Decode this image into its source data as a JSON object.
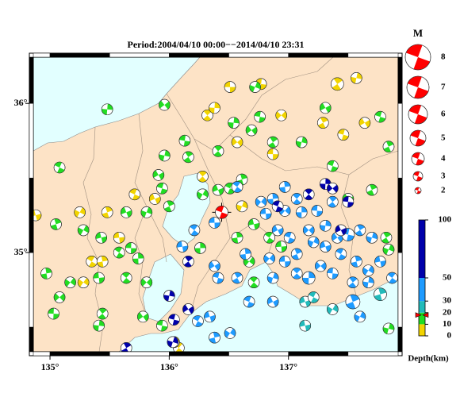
{
  "title": "Period:2004/04/10 00:00−−2014/04/10 23:31",
  "map": {
    "xlim": [
      134.86,
      137.92
    ],
    "ylim": [
      34.335,
      36.31
    ],
    "xticks": [
      {
        "value": 135,
        "label": "135°"
      },
      {
        "value": 136,
        "label": "136°"
      },
      {
        "value": 137,
        "label": "137°"
      }
    ],
    "yticks": [
      {
        "value": 35,
        "label": "35°"
      },
      {
        "value": 36,
        "label": "36°"
      }
    ],
    "land_color": "#fde3c6",
    "sea_color": "#e2ffff"
  },
  "main_event": {
    "lon": 136.44,
    "lat": 35.27,
    "depth": 18,
    "mag": 4,
    "color": "#ff0000"
  },
  "magnitude_legend": {
    "title": "M",
    "values": [
      8,
      7,
      6,
      5,
      4,
      3,
      2
    ],
    "color": "#ff0000"
  },
  "depth_scale": {
    "label": "Depth(km)",
    "lim": [
      0,
      100
    ],
    "ticks": [
      0,
      10,
      20,
      30,
      50,
      100
    ],
    "bands": [
      {
        "to": 10,
        "color": "#f2d400"
      },
      {
        "to": 20,
        "color": "#22dd22"
      },
      {
        "to": 30,
        "color": "#22bbbb"
      },
      {
        "to": 50,
        "color": "#1e9bff"
      },
      {
        "to": 100,
        "color": "#0000aa"
      }
    ]
  },
  "events": [
    {
      "lon": 136.51,
      "lat": 36.11,
      "depth": 5,
      "mag": 3.5
    },
    {
      "lon": 136.32,
      "lat": 35.92,
      "depth": 5,
      "mag": 3.5
    },
    {
      "lon": 136.38,
      "lat": 35.97,
      "depth": 5,
      "mag": 3.5
    },
    {
      "lon": 136.57,
      "lat": 35.74,
      "depth": 5,
      "mag": 3.5
    },
    {
      "lon": 136.77,
      "lat": 36.13,
      "depth": 5,
      "mag": 3.5
    },
    {
      "lon": 137.41,
      "lat": 36.13,
      "depth": 5,
      "mag": 4
    },
    {
      "lon": 137.57,
      "lat": 36.17,
      "depth": 5,
      "mag": 3.5
    },
    {
      "lon": 137.64,
      "lat": 35.87,
      "depth": 5,
      "mag": 3.5
    },
    {
      "lon": 137.46,
      "lat": 35.79,
      "depth": 5,
      "mag": 3.5
    },
    {
      "lon": 137.29,
      "lat": 35.87,
      "depth": 5,
      "mag": 3.5
    },
    {
      "lon": 136.61,
      "lat": 35.31,
      "depth": 5,
      "mag": 3.5
    },
    {
      "lon": 135.88,
      "lat": 35.36,
      "depth": 5,
      "mag": 3.5
    },
    {
      "lon": 135.71,
      "lat": 35.39,
      "depth": 5,
      "mag": 3.5
    },
    {
      "lon": 135.48,
      "lat": 35.27,
      "depth": 5,
      "mag": 3.5
    },
    {
      "lon": 135.25,
      "lat": 35.27,
      "depth": 5,
      "mag": 3.5
    },
    {
      "lon": 134.88,
      "lat": 35.25,
      "depth": 5,
      "mag": 3.5
    },
    {
      "lon": 135.35,
      "lat": 34.94,
      "depth": 5,
      "mag": 3.5
    },
    {
      "lon": 135.44,
      "lat": 34.94,
      "depth": 5,
      "mag": 3.5
    },
    {
      "lon": 135.28,
      "lat": 34.8,
      "depth": 5,
      "mag": 3.5
    },
    {
      "lon": 135.58,
      "lat": 35.1,
      "depth": 5,
      "mag": 3.5
    },
    {
      "lon": 136.08,
      "lat": 34.36,
      "depth": 5,
      "mag": 3.5
    },
    {
      "lon": 136.04,
      "lat": 34.4,
      "depth": 5,
      "mag": 3.5
    },
    {
      "lon": 136.94,
      "lat": 35.92,
      "depth": 5,
      "mag": 3.5
    },
    {
      "lon": 136.87,
      "lat": 35.66,
      "depth": 5,
      "mag": 3.5
    },
    {
      "lon": 136.28,
      "lat": 35.51,
      "depth": 5,
      "mag": 3.5
    },
    {
      "lon": 135.48,
      "lat": 35.96,
      "depth": 15,
      "mag": 3.5
    },
    {
      "lon": 135.96,
      "lat": 35.99,
      "depth": 15,
      "mag": 3.5
    },
    {
      "lon": 136.13,
      "lat": 35.75,
      "depth": 15,
      "mag": 3.5
    },
    {
      "lon": 136.16,
      "lat": 35.64,
      "depth": 15,
      "mag": 3.5
    },
    {
      "lon": 135.96,
      "lat": 35.65,
      "depth": 15,
      "mag": 3.5
    },
    {
      "lon": 135.91,
      "lat": 35.52,
      "depth": 15,
      "mag": 3.5
    },
    {
      "lon": 135.94,
      "lat": 35.43,
      "depth": 15,
      "mag": 3.5
    },
    {
      "lon": 136.0,
      "lat": 35.31,
      "depth": 15,
      "mag": 3.5
    },
    {
      "lon": 135.81,
      "lat": 35.27,
      "depth": 15,
      "mag": 3.5
    },
    {
      "lon": 135.64,
      "lat": 35.27,
      "depth": 15,
      "mag": 3.5
    },
    {
      "lon": 135.08,
      "lat": 35.57,
      "depth": 15,
      "mag": 3.5
    },
    {
      "lon": 135.05,
      "lat": 35.19,
      "depth": 15,
      "mag": 3.5
    },
    {
      "lon": 135.28,
      "lat": 35.15,
      "depth": 15,
      "mag": 3.5
    },
    {
      "lon": 135.43,
      "lat": 35.1,
      "depth": 15,
      "mag": 3.5
    },
    {
      "lon": 135.58,
      "lat": 35.0,
      "depth": 15,
      "mag": 3.5
    },
    {
      "lon": 134.97,
      "lat": 34.86,
      "depth": 15,
      "mag": 3.5
    },
    {
      "lon": 135.17,
      "lat": 34.8,
      "depth": 15,
      "mag": 3.5
    },
    {
      "lon": 135.41,
      "lat": 34.83,
      "depth": 15,
      "mag": 3.5
    },
    {
      "lon": 135.64,
      "lat": 34.83,
      "depth": 15,
      "mag": 3.5
    },
    {
      "lon": 135.74,
      "lat": 34.96,
      "depth": 15,
      "mag": 3.5
    },
    {
      "lon": 135.81,
      "lat": 34.8,
      "depth": 15,
      "mag": 3.5
    },
    {
      "lon": 135.68,
      "lat": 35.03,
      "depth": 15,
      "mag": 3.5
    },
    {
      "lon": 136.41,
      "lat": 35.68,
      "depth": 15,
      "mag": 3.5
    },
    {
      "lon": 136.54,
      "lat": 35.87,
      "depth": 15,
      "mag": 3.5
    },
    {
      "lon": 136.69,
      "lat": 35.82,
      "depth": 15,
      "mag": 3.5
    },
    {
      "lon": 136.76,
      "lat": 35.91,
      "depth": 15,
      "mag": 3.5
    },
    {
      "lon": 136.87,
      "lat": 35.74,
      "depth": 15,
      "mag": 3.5
    },
    {
      "lon": 137.11,
      "lat": 35.74,
      "depth": 15,
      "mag": 3.5
    },
    {
      "lon": 137.31,
      "lat": 35.97,
      "depth": 15,
      "mag": 3.5
    },
    {
      "lon": 137.77,
      "lat": 35.91,
      "depth": 15,
      "mag": 3.5
    },
    {
      "lon": 137.84,
      "lat": 35.71,
      "depth": 15,
      "mag": 3.5
    },
    {
      "lon": 136.72,
      "lat": 36.11,
      "depth": 15,
      "mag": 3.5
    },
    {
      "lon": 136.41,
      "lat": 35.42,
      "depth": 15,
      "mag": 3.5
    },
    {
      "lon": 136.51,
      "lat": 35.43,
      "depth": 15,
      "mag": 3.5
    },
    {
      "lon": 136.61,
      "lat": 35.49,
      "depth": 15,
      "mag": 3.5
    },
    {
      "lon": 136.28,
      "lat": 35.39,
      "depth": 15,
      "mag": 3.5
    },
    {
      "lon": 136.71,
      "lat": 35.19,
      "depth": 15,
      "mag": 3.5
    },
    {
      "lon": 136.84,
      "lat": 35.1,
      "depth": 15,
      "mag": 3.5
    },
    {
      "lon": 136.57,
      "lat": 35.1,
      "depth": 15,
      "mag": 3.5
    },
    {
      "lon": 136.67,
      "lat": 34.94,
      "depth": 15,
      "mag": 3.5
    },
    {
      "lon": 136.94,
      "lat": 35.04,
      "depth": 15,
      "mag": 3.5
    },
    {
      "lon": 136.71,
      "lat": 34.8,
      "depth": 15,
      "mag": 3.5
    },
    {
      "lon": 136.26,
      "lat": 35.03,
      "depth": 15,
      "mag": 3.5
    },
    {
      "lon": 135.08,
      "lat": 34.7,
      "depth": 15,
      "mag": 3.5
    },
    {
      "lon": 135.03,
      "lat": 34.59,
      "depth": 15,
      "mag": 3.5
    },
    {
      "lon": 135.44,
      "lat": 34.59,
      "depth": 15,
      "mag": 3.5
    },
    {
      "lon": 135.41,
      "lat": 34.51,
      "depth": 15,
      "mag": 3.5
    },
    {
      "lon": 135.78,
      "lat": 34.57,
      "depth": 15,
      "mag": 3.5
    },
    {
      "lon": 135.94,
      "lat": 34.51,
      "depth": 15,
      "mag": 3.5
    },
    {
      "lon": 137.82,
      "lat": 35.1,
      "depth": 15,
      "mag": 3.5
    },
    {
      "lon": 137.84,
      "lat": 34.49,
      "depth": 15,
      "mag": 3.5
    },
    {
      "lon": 137.5,
      "lat": 35.36,
      "depth": 15,
      "mag": 3.5
    },
    {
      "lon": 137.37,
      "lat": 35.58,
      "depth": 15,
      "mag": 3.5
    },
    {
      "lon": 137.7,
      "lat": 35.42,
      "depth": 15,
      "mag": 3.5
    },
    {
      "lon": 137.84,
      "lat": 35.02,
      "depth": 15,
      "mag": 3.5
    },
    {
      "lon": 137.14,
      "lat": 34.67,
      "depth": 25,
      "mag": 3.5
    },
    {
      "lon": 137.21,
      "lat": 34.7,
      "depth": 25,
      "mag": 3.5
    },
    {
      "lon": 137.77,
      "lat": 34.72,
      "depth": 25,
      "mag": 4
    },
    {
      "lon": 137.37,
      "lat": 34.62,
      "depth": 25,
      "mag": 3.5
    },
    {
      "lon": 137.14,
      "lat": 34.51,
      "depth": 25,
      "mag": 3.5
    },
    {
      "lon": 136.57,
      "lat": 35.44,
      "depth": 40,
      "mag": 3.5
    },
    {
      "lon": 136.97,
      "lat": 35.44,
      "depth": 40,
      "mag": 3.5
    },
    {
      "lon": 136.77,
      "lat": 35.34,
      "depth": 40,
      "mag": 3.5
    },
    {
      "lon": 136.81,
      "lat": 35.26,
      "depth": 40,
      "mag": 3.5
    },
    {
      "lon": 137.07,
      "lat": 35.36,
      "depth": 40,
      "mag": 3.5
    },
    {
      "lon": 137.11,
      "lat": 35.27,
      "depth": 40,
      "mag": 3.5
    },
    {
      "lon": 137.17,
      "lat": 35.15,
      "depth": 40,
      "mag": 3.5
    },
    {
      "lon": 137.24,
      "lat": 35.28,
      "depth": 40,
      "mag": 3.5
    },
    {
      "lon": 137.37,
      "lat": 35.34,
      "depth": 40,
      "mag": 3.5
    },
    {
      "lon": 137.31,
      "lat": 35.18,
      "depth": 40,
      "mag": 3.5
    },
    {
      "lon": 137.41,
      "lat": 35.1,
      "depth": 40,
      "mag": 3.5
    },
    {
      "lon": 137.5,
      "lat": 35.12,
      "depth": 40,
      "mag": 4
    },
    {
      "lon": 137.6,
      "lat": 35.15,
      "depth": 40,
      "mag": 3.5
    },
    {
      "lon": 137.7,
      "lat": 35.1,
      "depth": 40,
      "mag": 3.5
    },
    {
      "lon": 136.91,
      "lat": 35.15,
      "depth": 40,
      "mag": 3.5
    },
    {
      "lon": 137.01,
      "lat": 35.1,
      "depth": 40,
      "mag": 3.5
    },
    {
      "lon": 137.07,
      "lat": 34.99,
      "depth": 40,
      "mag": 3.5
    },
    {
      "lon": 137.21,
      "lat": 35.07,
      "depth": 40,
      "mag": 3.5
    },
    {
      "lon": 137.31,
      "lat": 35.04,
      "depth": 40,
      "mag": 3.5
    },
    {
      "lon": 137.44,
      "lat": 34.99,
      "depth": 40,
      "mag": 3.5
    },
    {
      "lon": 137.57,
      "lat": 34.94,
      "depth": 40,
      "mag": 3.5
    },
    {
      "lon": 137.67,
      "lat": 34.88,
      "depth": 40,
      "mag": 3.5
    },
    {
      "lon": 137.77,
      "lat": 34.94,
      "depth": 40,
      "mag": 3.5
    },
    {
      "lon": 137.87,
      "lat": 34.83,
      "depth": 40,
      "mag": 3.5
    },
    {
      "lon": 136.64,
      "lat": 34.99,
      "depth": 40,
      "mag": 3.5
    },
    {
      "lon": 136.84,
      "lat": 34.96,
      "depth": 40,
      "mag": 3.5
    },
    {
      "lon": 136.97,
      "lat": 34.94,
      "depth": 40,
      "mag": 3.5
    },
    {
      "lon": 137.07,
      "lat": 34.86,
      "depth": 40,
      "mag": 3.5
    },
    {
      "lon": 137.17,
      "lat": 34.83,
      "depth": 40,
      "mag": 4
    },
    {
      "lon": 137.27,
      "lat": 34.91,
      "depth": 40,
      "mag": 3.5
    },
    {
      "lon": 137.37,
      "lat": 34.86,
      "depth": 40,
      "mag": 3.5
    },
    {
      "lon": 137.54,
      "lat": 34.8,
      "depth": 40,
      "mag": 3.5
    },
    {
      "lon": 137.67,
      "lat": 34.8,
      "depth": 40,
      "mag": 3.5
    },
    {
      "lon": 136.38,
      "lat": 34.91,
      "depth": 40,
      "mag": 3.5
    },
    {
      "lon": 136.41,
      "lat": 34.83,
      "depth": 40,
      "mag": 3.5
    },
    {
      "lon": 136.57,
      "lat": 34.83,
      "depth": 40,
      "mag": 3.5
    },
    {
      "lon": 136.87,
      "lat": 34.83,
      "depth": 40,
      "mag": 3.5
    },
    {
      "lon": 136.87,
      "lat": 34.67,
      "depth": 40,
      "mag": 3.5
    },
    {
      "lon": 136.67,
      "lat": 34.67,
      "depth": 40,
      "mag": 3.5
    },
    {
      "lon": 137.54,
      "lat": 34.67,
      "depth": 40,
      "mag": 4.5
    },
    {
      "lon": 137.6,
      "lat": 34.57,
      "depth": 40,
      "mag": 3.5
    },
    {
      "lon": 136.34,
      "lat": 34.57,
      "depth": 40,
      "mag": 3.5
    },
    {
      "lon": 136.24,
      "lat": 34.54,
      "depth": 40,
      "mag": 3.5
    },
    {
      "lon": 136.38,
      "lat": 34.43,
      "depth": 40,
      "mag": 3.5
    },
    {
      "lon": 136.51,
      "lat": 34.46,
      "depth": 40,
      "mag": 3.5
    },
    {
      "lon": 136.11,
      "lat": 35.04,
      "depth": 40,
      "mag": 3.5
    },
    {
      "lon": 136.21,
      "lat": 35.15,
      "depth": 40,
      "mag": 3.5
    },
    {
      "lon": 136.87,
      "lat": 35.36,
      "depth": 40,
      "mag": 3.5
    },
    {
      "lon": 136.97,
      "lat": 35.28,
      "depth": 40,
      "mag": 3.5
    },
    {
      "lon": 136.38,
      "lat": 35.2,
      "depth": 40,
      "mag": 3.5
    },
    {
      "lon": 137.17,
      "lat": 35.39,
      "depth": 70,
      "mag": 3.5
    },
    {
      "lon": 137.31,
      "lat": 35.46,
      "depth": 70,
      "mag": 3.5
    },
    {
      "lon": 137.37,
      "lat": 35.43,
      "depth": 70,
      "mag": 3.5
    },
    {
      "lon": 137.5,
      "lat": 35.34,
      "depth": 70,
      "mag": 3.5
    },
    {
      "lon": 136.16,
      "lat": 34.94,
      "depth": 70,
      "mag": 3.5
    },
    {
      "lon": 136.0,
      "lat": 34.71,
      "depth": 70,
      "mag": 3.5
    },
    {
      "lon": 136.16,
      "lat": 34.62,
      "depth": 70,
      "mag": 3.5
    },
    {
      "lon": 136.04,
      "lat": 34.55,
      "depth": 70,
      "mag": 3.5
    },
    {
      "lon": 135.64,
      "lat": 34.36,
      "depth": 70,
      "mag": 3.5
    },
    {
      "lon": 136.03,
      "lat": 34.4,
      "depth": 70,
      "mag": 3.5
    },
    {
      "lon": 137.44,
      "lat": 35.15,
      "depth": 70,
      "mag": 3.5
    },
    {
      "lon": 136.91,
      "lat": 35.31,
      "depth": 70,
      "mag": 3.5
    }
  ]
}
